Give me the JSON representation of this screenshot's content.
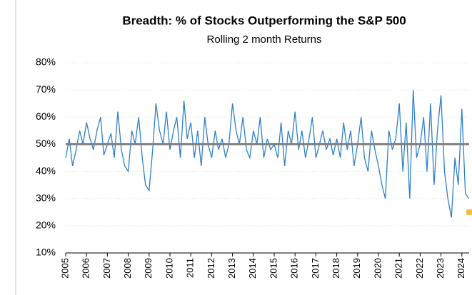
{
  "chart_data": {
    "type": "line",
    "title": "Breadth: %  of Stocks Outperforming the S&P 500",
    "subtitle": "Rolling 2 month Returns",
    "x": [
      2005,
      2005.17,
      2005.33,
      2005.5,
      2005.67,
      2005.83,
      2006,
      2006.17,
      2006.33,
      2006.5,
      2006.67,
      2006.83,
      2007,
      2007.17,
      2007.33,
      2007.5,
      2007.67,
      2007.83,
      2008,
      2008.17,
      2008.33,
      2008.5,
      2008.67,
      2008.83,
      2009,
      2009.17,
      2009.33,
      2009.5,
      2009.67,
      2009.83,
      2010,
      2010.17,
      2010.33,
      2010.5,
      2010.67,
      2010.83,
      2011,
      2011.17,
      2011.33,
      2011.5,
      2011.67,
      2011.83,
      2012,
      2012.17,
      2012.33,
      2012.5,
      2012.67,
      2012.83,
      2013,
      2013.17,
      2013.33,
      2013.5,
      2013.67,
      2013.83,
      2014,
      2014.17,
      2014.33,
      2014.5,
      2014.67,
      2014.83,
      2015,
      2015.17,
      2015.33,
      2015.5,
      2015.67,
      2015.83,
      2016,
      2016.17,
      2016.33,
      2016.5,
      2016.67,
      2016.83,
      2017,
      2017.17,
      2017.33,
      2017.5,
      2017.67,
      2017.83,
      2018,
      2018.17,
      2018.33,
      2018.5,
      2018.67,
      2018.83,
      2019,
      2019.17,
      2019.33,
      2019.5,
      2019.67,
      2019.83,
      2020,
      2020.17,
      2020.33,
      2020.5,
      2020.67,
      2020.83,
      2021,
      2021.17,
      2021.33,
      2021.5,
      2021.67,
      2021.83,
      2022,
      2022.17,
      2022.33,
      2022.5,
      2022.67,
      2022.83,
      2023,
      2023.17,
      2023.33,
      2023.5,
      2023.67,
      2023.83,
      2024,
      2024.17,
      2024.33
    ],
    "series": [
      {
        "color": "#2f80c8",
        "values": [
          45,
          52,
          42,
          48,
          55,
          50,
          58,
          52,
          48,
          55,
          60,
          46,
          50,
          54,
          45,
          62,
          48,
          42,
          40,
          55,
          50,
          60,
          45,
          35,
          33,
          48,
          65,
          55,
          50,
          62,
          48,
          55,
          60,
          45,
          66,
          52,
          58,
          45,
          55,
          42,
          60,
          50,
          45,
          55,
          48,
          52,
          45,
          50,
          65,
          55,
          50,
          60,
          48,
          45,
          55,
          50,
          60,
          45,
          52,
          48,
          50,
          45,
          58,
          42,
          55,
          50,
          62,
          48,
          55,
          45,
          52,
          60,
          45,
          50,
          55,
          48,
          52,
          46,
          52,
          45,
          58,
          48,
          55,
          42,
          50,
          60,
          45,
          40,
          55,
          48,
          42,
          35,
          30,
          55,
          48,
          52,
          65,
          40,
          58,
          30,
          70,
          45,
          50,
          60,
          40,
          65,
          35,
          55,
          68,
          40,
          30,
          23,
          45,
          35,
          63,
          32,
          30
        ]
      }
    ],
    "reference_line": {
      "value": 50,
      "color": "#7f7f7f"
    },
    "marker": {
      "x": 2024.35,
      "y": 25,
      "color": "#f0c040"
    },
    "xlim": [
      2005,
      2024.35
    ],
    "xticks": [
      2005,
      2006,
      2007,
      2008,
      2009,
      2010,
      2011,
      2012,
      2013,
      2014,
      2015,
      2016,
      2017,
      2018,
      2019,
      2020,
      2021,
      2022,
      2023,
      2024
    ],
    "ylim": [
      10,
      80
    ],
    "yticks": [
      {
        "value": 10,
        "label": "10%"
      },
      {
        "value": 20,
        "label": "20%"
      },
      {
        "value": 30,
        "label": "30%"
      },
      {
        "value": 40,
        "label": "40%"
      },
      {
        "value": 50,
        "label": "50%"
      },
      {
        "value": 60,
        "label": "60%"
      },
      {
        "value": 70,
        "label": "70%"
      },
      {
        "value": 80,
        "label": "80%"
      }
    ],
    "grid": true
  }
}
